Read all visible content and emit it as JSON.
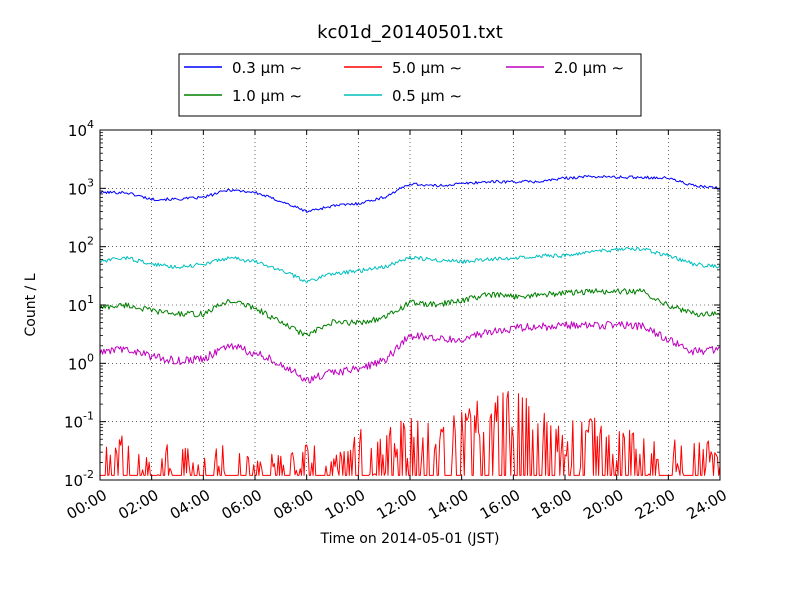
{
  "chart_data": {
    "type": "line",
    "title": "kc01d_20140501.txt",
    "xlabel": "Time on 2014-05-01 (JST)",
    "ylabel": "Count / L",
    "y_scale": "log",
    "ylim": [
      0.01,
      10000
    ],
    "xlim": [
      0,
      24
    ],
    "grid": true,
    "legend_position": "top-center",
    "x_ticks": [
      "00:00",
      "02:00",
      "04:00",
      "06:00",
      "08:00",
      "10:00",
      "12:00",
      "14:00",
      "16:00",
      "18:00",
      "20:00",
      "22:00",
      "24:00"
    ],
    "y_ticks": [
      {
        "base": "10",
        "exp": "-2"
      },
      {
        "base": "10",
        "exp": "-1"
      },
      {
        "base": "10",
        "exp": "0"
      },
      {
        "base": "10",
        "exp": "1"
      },
      {
        "base": "10",
        "exp": "2"
      },
      {
        "base": "10",
        "exp": "3"
      },
      {
        "base": "10",
        "exp": "4"
      }
    ],
    "x_hours": [
      0,
      1,
      2,
      3,
      4,
      5,
      6,
      7,
      8,
      9,
      10,
      11,
      12,
      13,
      14,
      15,
      16,
      17,
      18,
      19,
      20,
      21,
      22,
      23,
      24
    ],
    "series": [
      {
        "name": "0.3 μm ∼",
        "color": "#0000ff",
        "values": [
          850,
          850,
          650,
          650,
          700,
          950,
          850,
          600,
          400,
          500,
          550,
          700,
          1200,
          1100,
          1200,
          1300,
          1300,
          1300,
          1500,
          1600,
          1550,
          1550,
          1500,
          1100,
          1000
        ]
      },
      {
        "name": "1.0 μm ∼",
        "color": "#008000",
        "values": [
          9,
          10,
          8,
          7,
          7,
          12,
          9,
          5,
          3,
          5,
          5,
          6,
          11,
          10,
          12,
          15,
          14,
          15,
          16,
          17,
          17,
          17,
          10,
          7,
          7
        ]
      },
      {
        "name": "5.0 μm ∼",
        "color": "#ff0000",
        "values": [
          0.012,
          0.03,
          0.012,
          0.02,
          0.012,
          0.03,
          0.012,
          0.012,
          0.02,
          0.012,
          0.03,
          0.03,
          0.05,
          0.04,
          0.06,
          0.12,
          0.15,
          0.08,
          0.04,
          0.05,
          0.03,
          0.03,
          0.02,
          0.02,
          0.02
        ]
      },
      {
        "name": "0.5 μm ∼",
        "color": "#00bfbf",
        "values": [
          55,
          65,
          50,
          45,
          50,
          65,
          55,
          40,
          25,
          35,
          38,
          45,
          65,
          60,
          55,
          60,
          65,
          70,
          70,
          80,
          90,
          90,
          70,
          50,
          45
        ]
      },
      {
        "name": "2.0 μm ∼",
        "color": "#bf00bf",
        "values": [
          1.5,
          1.8,
          1.3,
          1.1,
          1.2,
          2.0,
          1.5,
          1.0,
          0.5,
          0.7,
          0.8,
          1.1,
          3.0,
          2.8,
          2.5,
          3.5,
          4.0,
          4.2,
          4.5,
          4.5,
          4.5,
          4.3,
          2.5,
          1.6,
          1.7
        ]
      }
    ]
  }
}
